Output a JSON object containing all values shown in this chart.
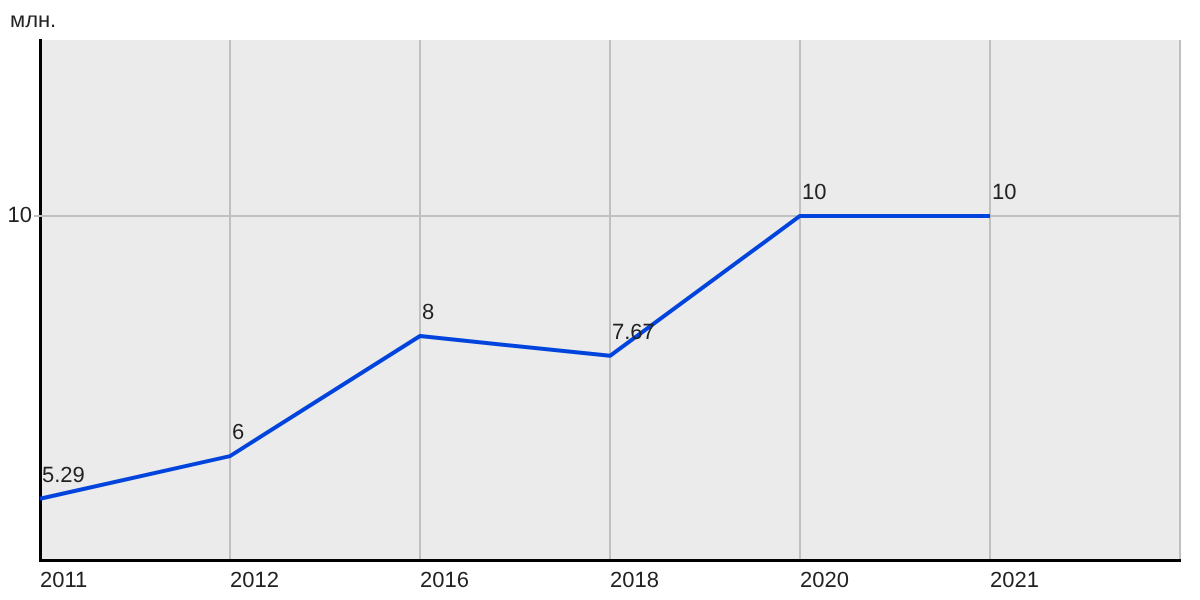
{
  "chart_data": {
    "type": "line",
    "ylabel": "млн.",
    "categories": [
      "2011",
      "2012",
      "2016",
      "2018",
      "2020",
      "2021"
    ],
    "series": [
      {
        "color": "#0044dd",
        "values": [
          5.29,
          6,
          8,
          7.67,
          10,
          10
        ]
      }
    ],
    "ylim": [
      4.27,
      12.93
    ],
    "ref_lines": [
      {
        "axis": "y",
        "value": 10,
        "label": "10",
        "color": "#c0c0c0"
      }
    ],
    "grid": "x",
    "legend": false,
    "marker": "none",
    "line_style": "solid",
    "data_labels": true
  }
}
